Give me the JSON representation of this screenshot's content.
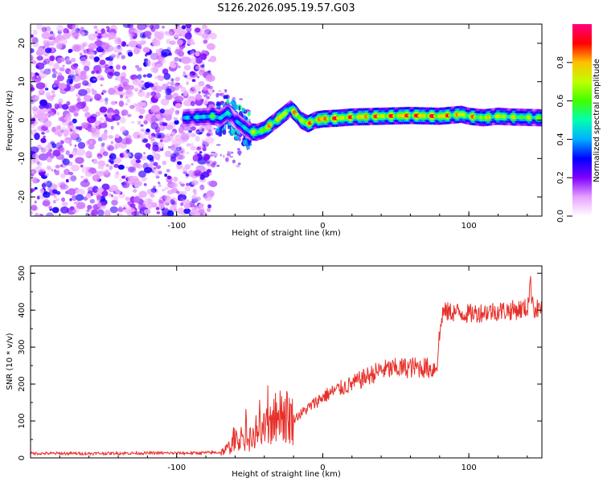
{
  "figure": {
    "title": "S126.2026.095.19.57.G03"
  },
  "chart_data": [
    {
      "type": "heatmap",
      "title": "S126.2026.095.19.57.G03",
      "xlabel": "Height of straight line (km)",
      "ylabel": "Frequency (Hz)",
      "xlim": [
        -200,
        150
      ],
      "ylim": [
        -25,
        25
      ],
      "xticks": [
        -100,
        0,
        100
      ],
      "yticks": [
        -20,
        -10,
        0,
        10,
        20
      ],
      "colorbar": {
        "label": "Normalized spectral amplitude",
        "range": [
          0,
          1
        ],
        "ticks": [
          "0.0",
          "0.2",
          "0.4",
          "0.6",
          "0.8"
        ],
        "colors": [
          "#ffffff",
          "#e8a0ff",
          "#8000ff",
          "#0000ff",
          "#00b0ff",
          "#00ffb0",
          "#40ff00",
          "#c0ff00",
          "#ffc000",
          "#ff0000",
          "#ff0080"
        ]
      },
      "noise_region_x": [
        -200,
        -75
      ],
      "ridge": {
        "x": [
          -95,
          -85,
          -75,
          -70,
          -65,
          -60,
          -55,
          -50,
          -45,
          -40,
          -35,
          -30,
          -25,
          -22,
          -18,
          -15,
          -10,
          -5,
          0,
          10,
          20,
          40,
          60,
          80,
          95,
          100,
          110,
          120,
          130,
          150
        ],
        "f": [
          0.6,
          0.8,
          1.0,
          0.5,
          2.0,
          0.0,
          -1.5,
          -3.0,
          -3.2,
          -2.5,
          -1.0,
          0.5,
          2.0,
          3.0,
          1.5,
          0.0,
          -1.0,
          0.0,
          0.3,
          0.5,
          0.8,
          1.0,
          1.2,
          1.0,
          1.5,
          1.0,
          0.6,
          1.0,
          0.8,
          0.6
        ],
        "amp": [
          0.45,
          0.5,
          0.6,
          0.55,
          0.5,
          0.4,
          0.45,
          0.65,
          0.75,
          0.8,
          0.85,
          0.85,
          0.8,
          0.75,
          0.85,
          0.9,
          0.85,
          0.9,
          0.95,
          0.95,
          0.9,
          0.9,
          0.95,
          0.95,
          0.85,
          0.85,
          0.8,
          0.8,
          0.75,
          0.7
        ]
      }
    },
    {
      "type": "line",
      "xlabel": "Height of straight line (km)",
      "ylabel": "SNR (10 * v/v)",
      "xlim": [
        -200,
        150
      ],
      "ylim": [
        0,
        520
      ],
      "xticks": [
        -100,
        0,
        100
      ],
      "yticks": [
        0,
        100,
        200,
        300,
        400,
        500
      ],
      "series": [
        {
          "name": "SNR",
          "color": "#e8302a",
          "x": [
            -200,
            -160,
            -120,
            -90,
            -70,
            -65,
            -60,
            -55,
            -52,
            -50,
            -45,
            -40,
            -35,
            -30,
            -25,
            -20,
            -15,
            -10,
            -5,
            0,
            10,
            20,
            30,
            40,
            50,
            60,
            70,
            75,
            78,
            80,
            82,
            90,
            100,
            110,
            120,
            130,
            140,
            142,
            145,
            150
          ],
          "y": [
            12,
            12,
            13,
            13,
            15,
            25,
            45,
            55,
            60,
            48,
            60,
            75,
            100,
            110,
            115,
            105,
            120,
            135,
            150,
            165,
            185,
            200,
            220,
            238,
            242,
            245,
            245,
            240,
            250,
            330,
            395,
            395,
            390,
            395,
            398,
            400,
            405,
            470,
            400,
            408
          ]
        }
      ]
    }
  ]
}
